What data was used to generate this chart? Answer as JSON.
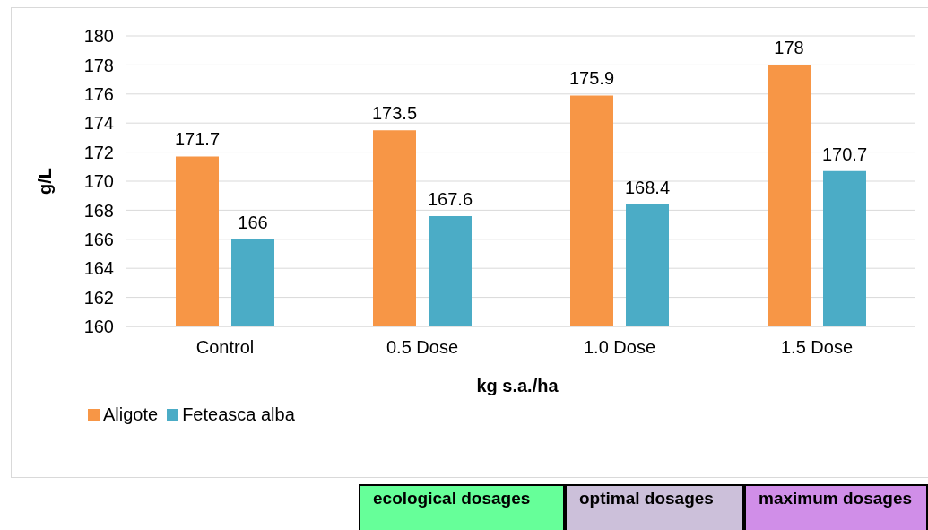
{
  "chart_data": {
    "type": "bar",
    "xlabel": "kg s.a./ha",
    "ylabel": "g/L",
    "categories": [
      "Control",
      "0.5 Dose",
      "1.0 Dose",
      "1.5 Dose"
    ],
    "series": [
      {
        "name": "Aligote",
        "color": "#f79646",
        "values": [
          171.7,
          173.5,
          175.9,
          178
        ]
      },
      {
        "name": "Feteasca alba",
        "color": "#4bacc6",
        "values": [
          166,
          167.6,
          168.4,
          170.7
        ]
      }
    ],
    "ylim": [
      160,
      180
    ],
    "yticks": [
      160,
      162,
      164,
      166,
      168,
      170,
      172,
      174,
      176,
      178,
      180
    ],
    "grid": "y",
    "legend": "bottom left",
    "data_labels": true,
    "annotations": [
      "ecological dosages",
      "optimal dosages",
      "maximum dosages"
    ]
  }
}
